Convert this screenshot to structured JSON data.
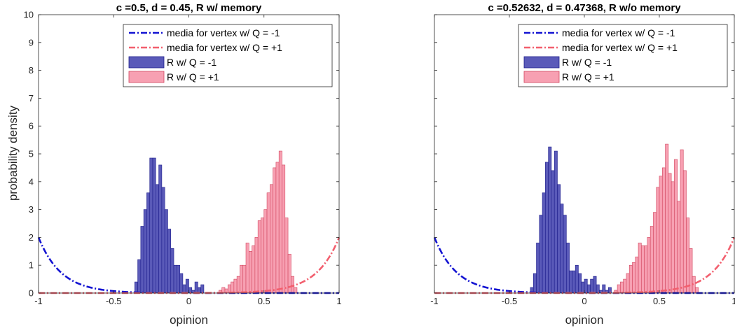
{
  "figure": {
    "ylabel": "probability density",
    "xlabel": "opinion"
  },
  "colors": {
    "minus_line": "#1414d2",
    "plus_line": "#f25f6e",
    "minus_fill": "#5a5ab9",
    "minus_edge": "#1e1e8c",
    "plus_fill": "#f7a0b2",
    "plus_edge": "#d2465f",
    "axis": "#262626"
  },
  "chart_data": [
    {
      "type": "bar",
      "title": "c =0.5, d = 0.45, R w/ memory",
      "xlabel": "opinion",
      "ylabel": "probability density",
      "xlim": [
        -1,
        1
      ],
      "ylim": [
        0,
        10
      ],
      "xticks": [
        -1,
        -0.5,
        0,
        0.5,
        1
      ],
      "xtick_labels": [
        "-1",
        "-0.5",
        "0",
        "0.5",
        "1"
      ],
      "yticks": [
        0,
        1,
        2,
        3,
        4,
        5,
        6,
        7,
        8,
        9,
        10
      ],
      "ytick_labels": [
        "0",
        "1",
        "2",
        "3",
        "4",
        "5",
        "6",
        "7",
        "8",
        "9",
        "10"
      ],
      "bin_width": 0.02,
      "legend_position": "top-right",
      "lines": [
        {
          "name": "media for vertex w/ Q = -1",
          "color_key": "minus_line",
          "dash": "dashdot",
          "decay": 0.15,
          "sign": -1,
          "y_at_edge": 2
        },
        {
          "name": "media for vertex w/ Q = +1",
          "color_key": "plus_line",
          "dash": "dashdot",
          "decay": 0.15,
          "sign": 1,
          "y_at_edge": 2
        }
      ],
      "series": [
        {
          "name": "R w/ Q = -1",
          "fill_key": "minus_fill",
          "edge_key": "minus_edge",
          "bins_left": [
            -0.36,
            -0.34,
            -0.32,
            -0.3,
            -0.28,
            -0.26,
            -0.24,
            -0.22,
            -0.2,
            -0.18,
            -0.16,
            -0.14,
            -0.12,
            -0.1,
            -0.08,
            -0.06,
            -0.04,
            -0.02,
            0.0,
            0.02,
            0.04,
            0.06,
            0.08
          ],
          "values": [
            0.4,
            1.2,
            2.4,
            3.0,
            3.6,
            4.85,
            4.85,
            3.9,
            4.6,
            3.8,
            3.0,
            2.3,
            1.6,
            1.0,
            1.0,
            0.7,
            0.3,
            0.5,
            0.2,
            0.1,
            0.4,
            0.2,
            0.3
          ]
        },
        {
          "name": "R w/ Q = +1",
          "fill_key": "plus_fill",
          "edge_key": "plus_edge",
          "bins_left": [
            0.2,
            0.22,
            0.24,
            0.26,
            0.28,
            0.3,
            0.32,
            0.34,
            0.36,
            0.38,
            0.4,
            0.42,
            0.44,
            0.46,
            0.48,
            0.5,
            0.52,
            0.54,
            0.56,
            0.58,
            0.6,
            0.62,
            0.64,
            0.66,
            0.68,
            0.7
          ],
          "values": [
            0.1,
            0.2,
            0.15,
            0.3,
            0.4,
            0.5,
            0.6,
            1.0,
            1.0,
            1.8,
            1.5,
            1.7,
            2.0,
            2.6,
            2.7,
            3.0,
            3.6,
            3.9,
            4.5,
            4.7,
            5.1,
            4.6,
            2.7,
            1.4,
            0.6,
            0.2
          ]
        }
      ]
    },
    {
      "type": "bar",
      "title": "c =0.52632, d = 0.47368, R w/o memory",
      "xlabel": "opinion",
      "ylabel": "",
      "xlim": [
        -1,
        1
      ],
      "ylim": [
        0,
        10
      ],
      "xticks": [
        -1,
        -0.5,
        0,
        0.5,
        1
      ],
      "xtick_labels": [
        "-1",
        "-0.5",
        "0",
        "0.5",
        "1"
      ],
      "yticks": [
        0,
        1,
        2,
        3,
        4,
        5,
        6,
        7,
        8,
        9,
        10
      ],
      "ytick_labels": [],
      "bin_width": 0.02,
      "legend_position": "top-right",
      "lines": [
        {
          "name": "media for vertex w/ Q = -1",
          "color_key": "minus_line",
          "dash": "dashdot",
          "decay": 0.15,
          "sign": -1,
          "y_at_edge": 2
        },
        {
          "name": "media for vertex w/ Q = +1",
          "color_key": "plus_line",
          "dash": "dashdot",
          "decay": 0.15,
          "sign": 1,
          "y_at_edge": 2
        }
      ],
      "series": [
        {
          "name": "R w/ Q = -1",
          "fill_key": "minus_fill",
          "edge_key": "minus_edge",
          "bins_left": [
            -0.36,
            -0.34,
            -0.32,
            -0.3,
            -0.28,
            -0.26,
            -0.24,
            -0.22,
            -0.2,
            -0.18,
            -0.16,
            -0.14,
            -0.12,
            -0.1,
            -0.08,
            -0.06,
            -0.04,
            -0.02,
            0.0,
            0.02,
            0.04,
            0.06,
            0.08,
            0.1,
            0.12,
            0.14,
            0.16
          ],
          "values": [
            0.2,
            0.7,
            1.8,
            2.8,
            3.6,
            4.7,
            5.25,
            4.4,
            5.1,
            3.9,
            3.2,
            2.8,
            1.8,
            0.8,
            0.8,
            1.0,
            0.7,
            0.4,
            0.5,
            0.3,
            0.5,
            0.6,
            0.3,
            0.1,
            0.3,
            0.1,
            0.2
          ]
        },
        {
          "name": "R w/ Q = +1",
          "fill_key": "plus_fill",
          "edge_key": "plus_edge",
          "bins_left": [
            0.2,
            0.22,
            0.24,
            0.26,
            0.28,
            0.3,
            0.32,
            0.34,
            0.36,
            0.38,
            0.4,
            0.42,
            0.44,
            0.46,
            0.48,
            0.5,
            0.52,
            0.54,
            0.56,
            0.58,
            0.6,
            0.62,
            0.64,
            0.66,
            0.68,
            0.7,
            0.72,
            0.74
          ],
          "values": [
            0.1,
            0.3,
            0.4,
            0.5,
            0.7,
            1.0,
            1.1,
            1.3,
            1.8,
            1.7,
            1.7,
            2.0,
            2.4,
            2.9,
            3.8,
            4.2,
            4.5,
            5.35,
            4.3,
            4.0,
            4.8,
            3.3,
            5.15,
            4.4,
            2.7,
            1.6,
            0.6,
            0.2
          ]
        }
      ]
    }
  ]
}
